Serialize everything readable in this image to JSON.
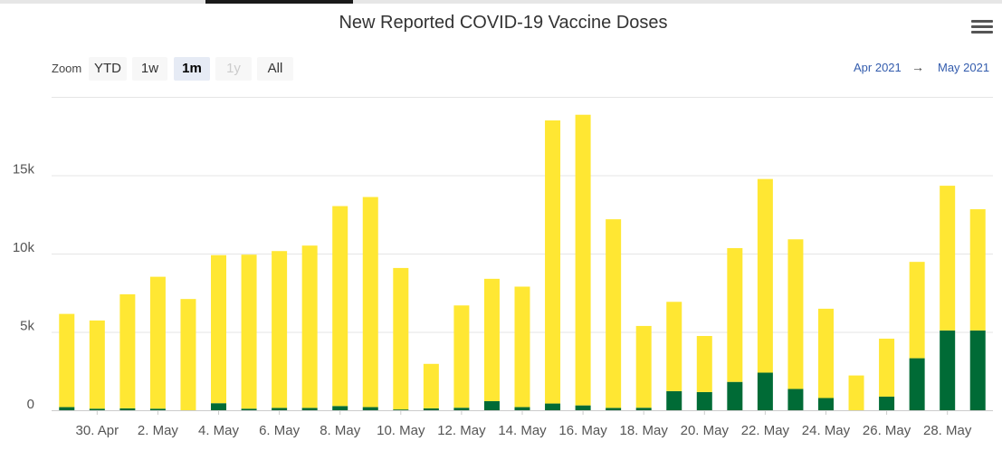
{
  "chart_data": {
    "type": "bar",
    "title": "New Reported COVID-19 Vaccine Doses",
    "stacked": true,
    "colors": {
      "yellow": "#ffe733",
      "green": "#006b36"
    },
    "x_tick_labels": [
      "30. Apr",
      "2. May",
      "4. May",
      "6. May",
      "8. May",
      "10. May",
      "12. May",
      "14. May",
      "16. May",
      "18. May",
      "20. May",
      "22. May",
      "24. May",
      "26. May",
      "28. May"
    ],
    "y_tick_labels": [
      "0",
      "5k",
      "10k",
      "15k"
    ],
    "ylim": [
      0,
      20000
    ],
    "categories": [
      "Apr 29",
      "Apr 30",
      "May 1",
      "May 2",
      "May 3",
      "May 4",
      "May 5",
      "May 6",
      "May 7",
      "May 8",
      "May 9",
      "May 10",
      "May 11",
      "May 12",
      "May 13",
      "May 14",
      "May 15",
      "May 16",
      "May 17",
      "May 18",
      "May 19",
      "May 20",
      "May 21",
      "May 22",
      "May 23",
      "May 24",
      "May 25",
      "May 26",
      "May 27",
      "May 28",
      "May 29"
    ],
    "series": [
      {
        "color": "yellow",
        "values": [
          5950,
          5630,
          7280,
          8420,
          7100,
          9450,
          9830,
          10010,
          10360,
          12760,
          13410,
          9030,
          2840,
          6530,
          7810,
          7690,
          18070,
          18550,
          12040,
          5220,
          5700,
          3580,
          8540,
          12360,
          9550,
          5700,
          2220,
          3700,
          6150,
          9240,
          7740
        ]
      },
      {
        "color": "green",
        "values": [
          200,
          100,
          120,
          100,
          0,
          450,
          100,
          150,
          150,
          270,
          200,
          50,
          120,
          160,
          580,
          200,
          430,
          310,
          150,
          160,
          1220,
          1160,
          1810,
          2400,
          1360,
          780,
          0,
          870,
          3320,
          5090,
          5090
        ]
      }
    ]
  },
  "ui": {
    "zoom_label": "Zoom",
    "zoom_buttons": [
      "YTD",
      "1w",
      "1m",
      "1y",
      "All"
    ],
    "zoom_active": "1m",
    "range_from": "Apr 2021",
    "range_arrow": "→",
    "range_to": "May 2021"
  }
}
